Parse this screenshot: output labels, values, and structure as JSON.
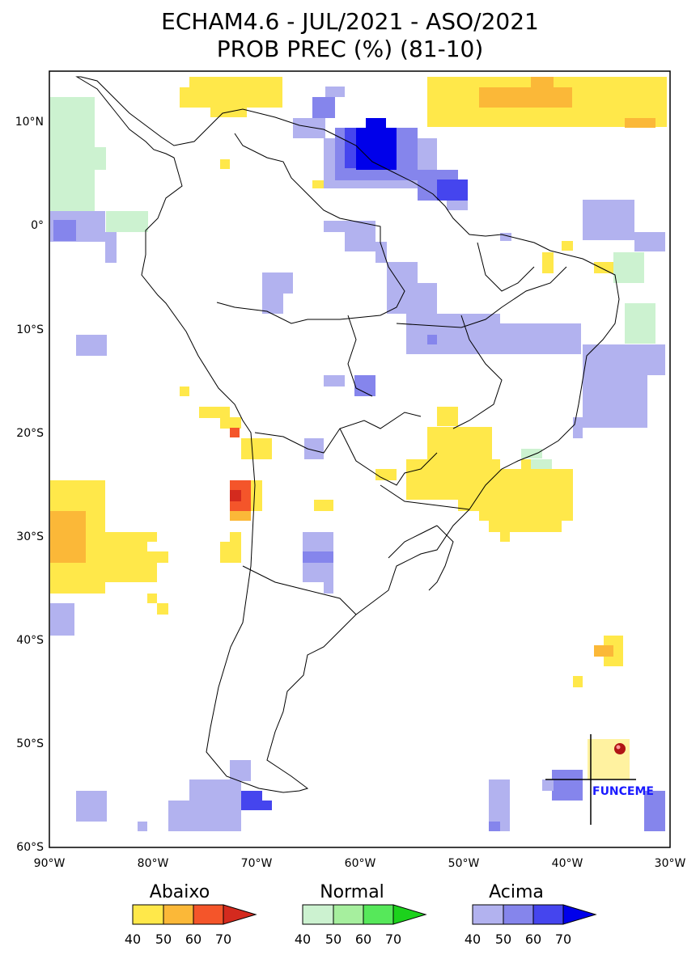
{
  "title": {
    "line1": "ECHAM4.6 - JUL/2021 - ASO/2021",
    "line2": "PROB PREC (%) (81-10)"
  },
  "lon_ticks": [
    "90°W",
    "80°W",
    "70°W",
    "60°W",
    "50°W",
    "40°W",
    "30°W"
  ],
  "lat_ticks": [
    "10°N",
    "0°",
    "10°S",
    "20°S",
    "30°S",
    "40°S",
    "50°S",
    "60°S"
  ],
  "legend": [
    {
      "title": "Abaixo",
      "ticks": [
        "40",
        "50",
        "60",
        "70"
      ],
      "colors": [
        "#ffe84a",
        "#fbb838",
        "#f4552a",
        "#d42a1e"
      ]
    },
    {
      "title": "Normal",
      "ticks": [
        "40",
        "50",
        "60",
        "70"
      ],
      "colors": [
        "#ccf2d0",
        "#a6ef9e",
        "#56e85a",
        "#1cd21c"
      ]
    },
    {
      "title": "Acima",
      "ticks": [
        "40",
        "50",
        "60",
        "70"
      ],
      "colors": [
        "#b2b2ef",
        "#8585ec",
        "#4545ee",
        "#0000ea"
      ]
    }
  ],
  "logo": {
    "text": "FUNCEME"
  }
}
